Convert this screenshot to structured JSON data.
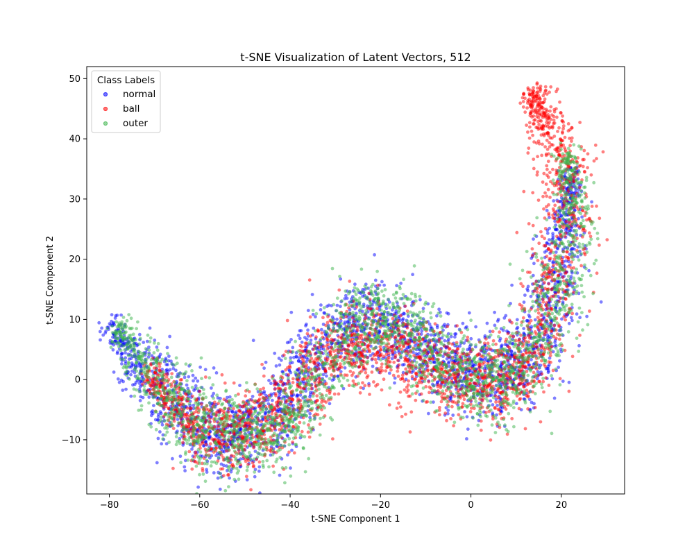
{
  "chart_data": {
    "type": "scatter",
    "title": "t-SNE Visualization of Latent Vectors, 512",
    "xlabel": "t-SNE Component 1",
    "ylabel": "t-SNE Component 2",
    "xlim": [
      -85,
      34
    ],
    "ylim": [
      -19,
      52
    ],
    "xticks": [
      -80,
      -60,
      -40,
      -20,
      0,
      20
    ],
    "yticks": [
      -10,
      0,
      10,
      20,
      30,
      40,
      50
    ],
    "grid": false,
    "legend": {
      "title": "Class Labels",
      "placement": "top-left"
    },
    "series": [
      {
        "name": "normal",
        "color": "#0000ff",
        "path": [
          [
            -80,
            10
          ],
          [
            -76,
            5
          ],
          [
            -72,
            2
          ],
          [
            -68,
            -2
          ],
          [
            -64,
            -5
          ],
          [
            -60,
            -8
          ],
          [
            -56,
            -10
          ],
          [
            -52,
            -10
          ],
          [
            -48,
            -9
          ],
          [
            -44,
            -6
          ],
          [
            -40,
            -3
          ],
          [
            -36,
            2
          ],
          [
            -32,
            6
          ],
          [
            -28,
            9
          ],
          [
            -24,
            10
          ],
          [
            -20,
            10
          ],
          [
            -16,
            8
          ],
          [
            -12,
            6
          ],
          [
            -8,
            4
          ],
          [
            -4,
            2
          ],
          [
            0,
            1
          ],
          [
            4,
            0
          ],
          [
            8,
            0
          ],
          [
            12,
            2
          ],
          [
            15,
            6
          ],
          [
            17,
            12
          ],
          [
            19,
            17
          ],
          [
            21,
            24
          ],
          [
            22,
            30
          ],
          [
            22,
            35
          ]
        ],
        "spread": 3.4
      },
      {
        "name": "ball",
        "color": "#ff0000",
        "path": [
          [
            -72,
            2
          ],
          [
            -68,
            -2
          ],
          [
            -64,
            -6
          ],
          [
            -60,
            -8
          ],
          [
            -56,
            -10
          ],
          [
            -52,
            -10
          ],
          [
            -48,
            -9
          ],
          [
            -44,
            -7
          ],
          [
            -40,
            -4
          ],
          [
            -36,
            0
          ],
          [
            -32,
            4
          ],
          [
            -28,
            6
          ],
          [
            -24,
            7
          ],
          [
            -20,
            6
          ],
          [
            -16,
            4
          ],
          [
            -12,
            3
          ],
          [
            -8,
            2
          ],
          [
            -4,
            1
          ],
          [
            0,
            0
          ],
          [
            4,
            -1
          ],
          [
            8,
            -1
          ],
          [
            12,
            1
          ],
          [
            15,
            5
          ],
          [
            17,
            12
          ],
          [
            19,
            18
          ],
          [
            21,
            26
          ],
          [
            22,
            32
          ],
          [
            20,
            37
          ],
          [
            17,
            42
          ],
          [
            15,
            45
          ],
          [
            13,
            48
          ]
        ],
        "spread": 3.2
      },
      {
        "name": "outer",
        "color": "#3cb44b",
        "path": [
          [
            -79,
            9
          ],
          [
            -75,
            5
          ],
          [
            -71,
            1
          ],
          [
            -67,
            -3
          ],
          [
            -63,
            -6
          ],
          [
            -59,
            -8
          ],
          [
            -55,
            -10
          ],
          [
            -51,
            -10
          ],
          [
            -47,
            -9
          ],
          [
            -43,
            -8
          ],
          [
            -39,
            -6
          ],
          [
            -35,
            -2
          ],
          [
            -31,
            4
          ],
          [
            -27,
            8
          ],
          [
            -23,
            11
          ],
          [
            -19,
            12
          ],
          [
            -15,
            9
          ],
          [
            -11,
            6
          ],
          [
            -7,
            3
          ],
          [
            -3,
            0
          ],
          [
            1,
            -1
          ],
          [
            5,
            -1
          ],
          [
            9,
            0
          ],
          [
            13,
            3
          ],
          [
            16,
            8
          ],
          [
            19,
            14
          ],
          [
            21,
            20
          ],
          [
            22,
            27
          ],
          [
            22,
            33
          ],
          [
            21,
            38
          ]
        ],
        "spread": 3.3
      }
    ]
  }
}
